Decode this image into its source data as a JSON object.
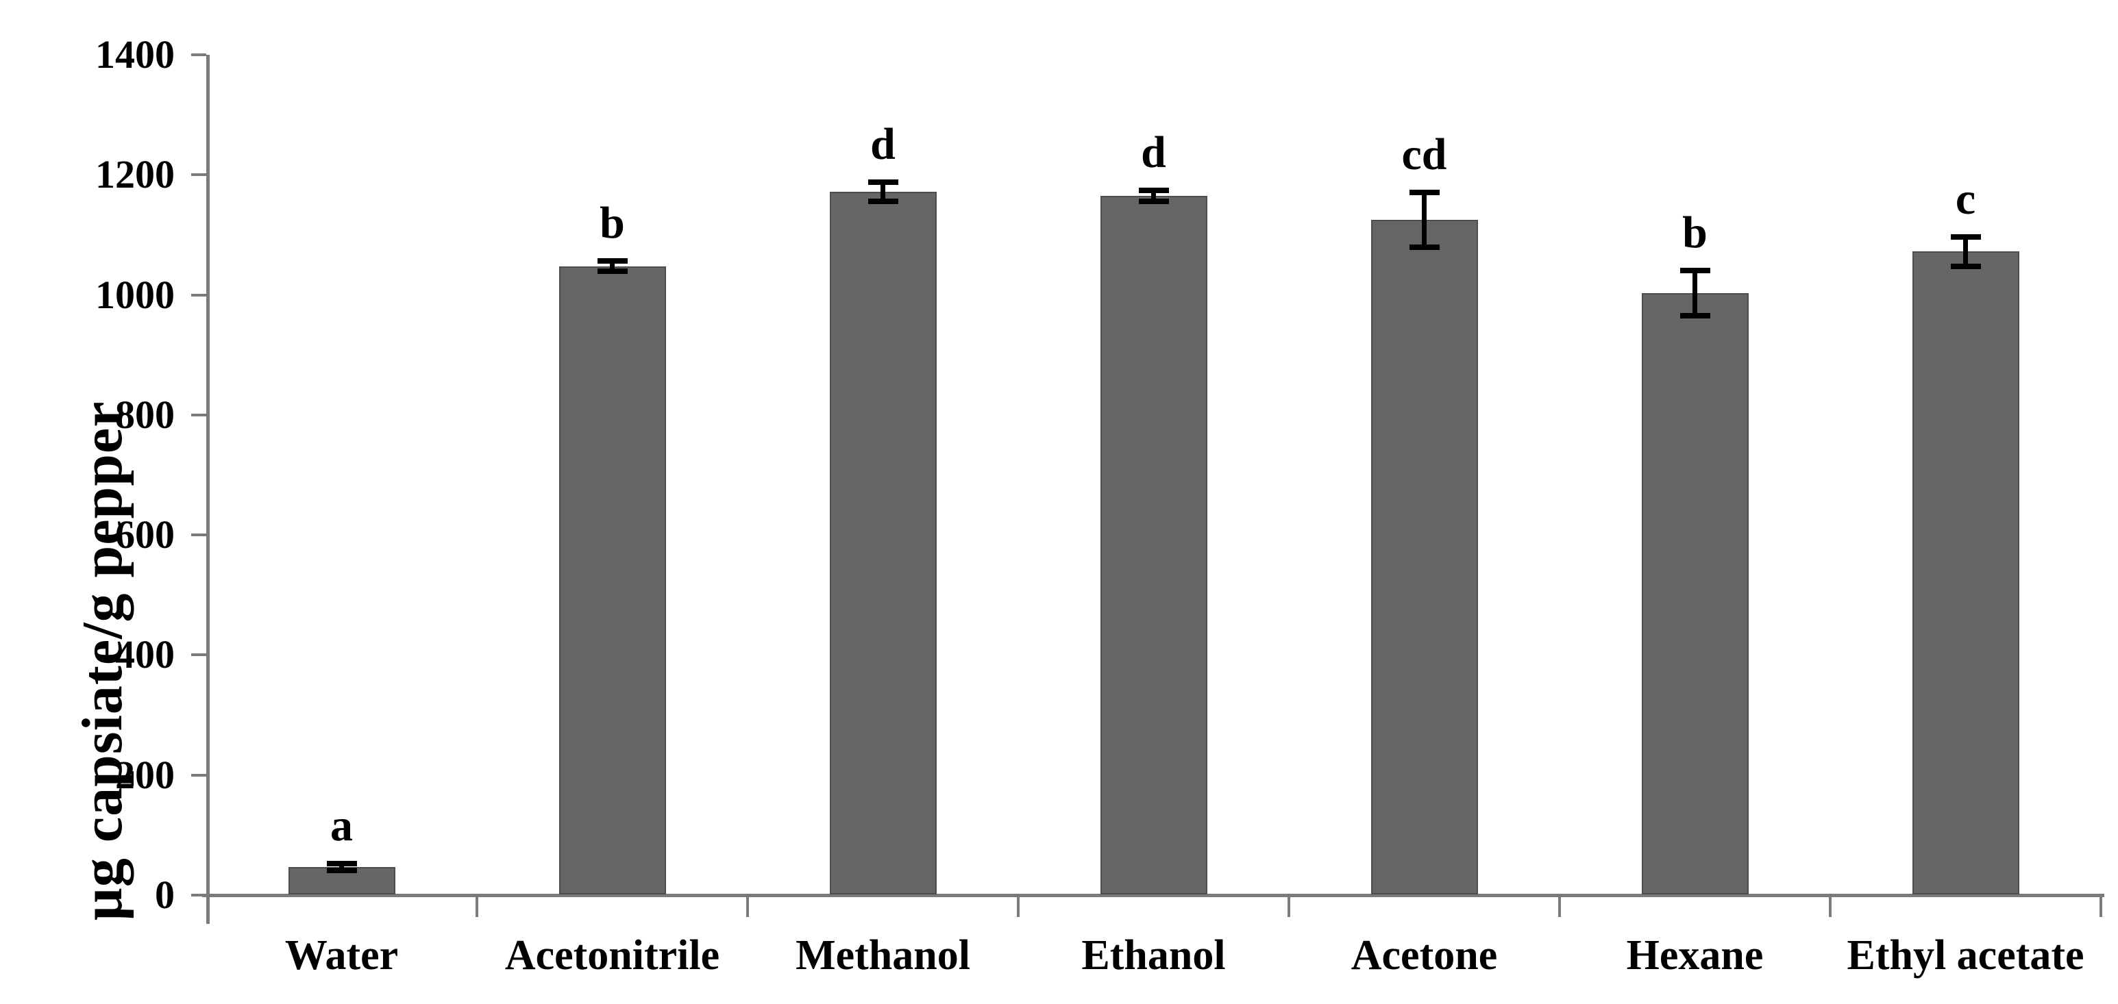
{
  "chart_data": {
    "type": "bar",
    "title": "",
    "xlabel": "",
    "ylabel": "µg capsiate/g pepper",
    "categories": [
      "Water",
      "Acetonitrile",
      "Methanol",
      "Ethanol",
      "Acetone",
      "Hexane",
      "Ethyl acetate"
    ],
    "values": [
      47,
      1048,
      1172,
      1165,
      1125,
      1003,
      1072
    ],
    "error_bars": [
      6,
      9,
      16,
      9,
      46,
      38,
      25
    ],
    "sig_letters": [
      "a",
      "b",
      "d",
      "d",
      "cd",
      "b",
      "c"
    ],
    "ylim": [
      0,
      1400
    ],
    "yticks": [
      0,
      200,
      400,
      600,
      800,
      1000,
      1200,
      1400
    ],
    "grid": false,
    "legend_position": "none",
    "bar_color": "#666666",
    "bar_border_color": "#4d4d4d",
    "axis_color": "#7a7a7a",
    "error_bar_color": "#000000",
    "text_color": "#000000"
  }
}
